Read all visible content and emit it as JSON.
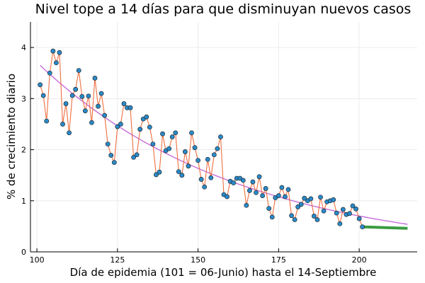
{
  "chart_data": {
    "type": "scatter",
    "title": "Nivel tope a 14 días para que disminuyan nuevos casos",
    "xlabel": "Día de epidemia (101 = 06-Junio) hasta el 14-Septiembre",
    "ylabel": "% de crecimiento diario",
    "xlim": [
      98,
      218
    ],
    "ylim": [
      0,
      4.5
    ],
    "xticks": [
      100,
      125,
      150,
      175,
      200
    ],
    "yticks": [
      0,
      1,
      2,
      3,
      4
    ],
    "grid": true,
    "legend": "none",
    "colors": {
      "points": "#2a89c7",
      "line": "#ee6f3f",
      "trend": "#c76ddb",
      "target": "#399b40",
      "grid": "#ececec",
      "axis": "#000000"
    },
    "series": [
      {
        "name": "daily_growth",
        "x": [
          101,
          102,
          103,
          104,
          105,
          106,
          107,
          108,
          109,
          110,
          111,
          112,
          113,
          114,
          115,
          116,
          117,
          118,
          119,
          120,
          121,
          122,
          123,
          124,
          125,
          126,
          127,
          128,
          129,
          130,
          131,
          132,
          133,
          134,
          135,
          136,
          137,
          138,
          139,
          140,
          141,
          142,
          143,
          144,
          145,
          146,
          147,
          148,
          149,
          150,
          151,
          152,
          153,
          154,
          155,
          156,
          157,
          158,
          159,
          160,
          161,
          162,
          163,
          164,
          165,
          166,
          167,
          168,
          169,
          170,
          171,
          172,
          173,
          174,
          175,
          176,
          177,
          178,
          179,
          180,
          181,
          182,
          183,
          184,
          185,
          186,
          187,
          188,
          189,
          190,
          191,
          192,
          193,
          194,
          195,
          196,
          197,
          198,
          199,
          200,
          201
        ],
        "y": [
          3.27,
          3.06,
          2.56,
          3.5,
          3.93,
          3.7,
          3.9,
          2.5,
          2.9,
          2.33,
          3.06,
          3.18,
          3.55,
          3.04,
          2.76,
          3.05,
          2.53,
          3.4,
          2.85,
          3.1,
          2.67,
          2.11,
          1.89,
          1.75,
          2.45,
          2.5,
          2.9,
          2.82,
          2.82,
          1.85,
          1.9,
          2.4,
          2.6,
          2.64,
          2.44,
          2.11,
          1.51,
          1.56,
          2.31,
          1.98,
          2.02,
          2.25,
          2.33,
          1.57,
          1.5,
          1.96,
          1.68,
          2.33,
          2.04,
          1.79,
          1.42,
          1.27,
          1.81,
          1.45,
          1.9,
          2.02,
          2.25,
          1.12,
          1.08,
          1.38,
          1.35,
          1.44,
          1.44,
          1.4,
          0.91,
          1.2,
          1.37,
          1.16,
          1.47,
          1.1,
          1.24,
          0.85,
          0.68,
          1.06,
          1.1,
          1.26,
          1.08,
          1.22,
          0.71,
          0.63,
          0.88,
          0.93,
          1.05,
          1.0,
          1.04,
          0.7,
          0.63,
          1.07,
          0.8,
          0.98,
          1.0,
          1.02,
          0.76,
          0.55,
          0.83,
          0.73,
          0.75,
          0.9,
          0.84,
          0.65,
          0.49
        ]
      },
      {
        "name": "trend",
        "x": [
          101,
          215
        ],
        "y": [
          3.65,
          0.54
        ],
        "curve_k": 0.016
      },
      {
        "name": "target",
        "x": [
          201,
          215
        ],
        "y": [
          0.49,
          0.46
        ]
      }
    ]
  }
}
